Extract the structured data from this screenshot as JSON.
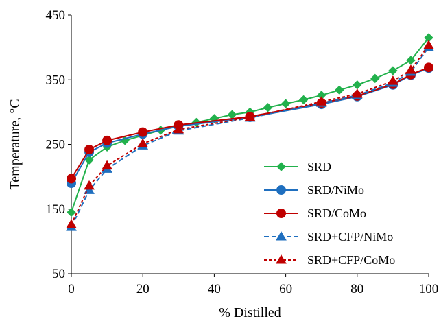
{
  "chart_data": {
    "type": "line",
    "title": "",
    "xlabel": "% Distilled",
    "ylabel": "Temperature, °C",
    "xlim": [
      0,
      100
    ],
    "ylim": [
      50,
      450
    ],
    "xticks": [
      "0",
      "20",
      "40",
      "60",
      "80",
      "100"
    ],
    "yticks": [
      "50",
      "150",
      "250",
      "350",
      "450"
    ],
    "grid": false,
    "legend_position": "bottom-right",
    "series": [
      {
        "name": "SRD",
        "color": "#22b14c",
        "marker": "diamond",
        "dash": "solid",
        "x": [
          0,
          5,
          10,
          15,
          20,
          25,
          30,
          35,
          40,
          45,
          50,
          55,
          60,
          65,
          70,
          75,
          80,
          85,
          90,
          95,
          100
        ],
        "y": [
          145,
          226,
          246,
          256,
          264,
          272,
          279,
          284,
          290,
          296,
          300,
          307,
          313,
          319,
          326,
          334,
          342,
          352,
          364,
          380,
          415
        ]
      },
      {
        "name": "SRD/NiMo",
        "color": "#1f6fbf",
        "marker": "circle",
        "dash": "solid",
        "x": [
          0,
          5,
          10,
          20,
          30,
          50,
          70,
          80,
          90,
          95,
          100
        ],
        "y": [
          190,
          238,
          252,
          266,
          278,
          292,
          312,
          324,
          342,
          357,
          368
        ]
      },
      {
        "name": "SRD/CoMo",
        "color": "#c00000",
        "marker": "circle",
        "dash": "solid",
        "x": [
          0,
          5,
          10,
          20,
          30,
          50,
          70,
          80,
          90,
          95,
          100
        ],
        "y": [
          197,
          242,
          256,
          269,
          280,
          293,
          314,
          325,
          343,
          358,
          369
        ]
      },
      {
        "name": "SRD+CFP/NiMo",
        "color": "#1f6fbf",
        "marker": "triangle",
        "dash": "dashed",
        "x": [
          0,
          5,
          10,
          20,
          30,
          50,
          70,
          80,
          90,
          95,
          100
        ],
        "y": [
          122,
          179,
          212,
          248,
          271,
          291,
          314,
          326,
          345,
          362,
          400
        ]
      },
      {
        "name": "SRD+CFP/CoMo",
        "color": "#c00000",
        "marker": "triangle",
        "dash": "dotted",
        "x": [
          0,
          5,
          10,
          20,
          30,
          50,
          70,
          80,
          90,
          95,
          100
        ],
        "y": [
          126,
          186,
          217,
          251,
          273,
          292,
          316,
          328,
          348,
          365,
          403
        ]
      }
    ]
  }
}
